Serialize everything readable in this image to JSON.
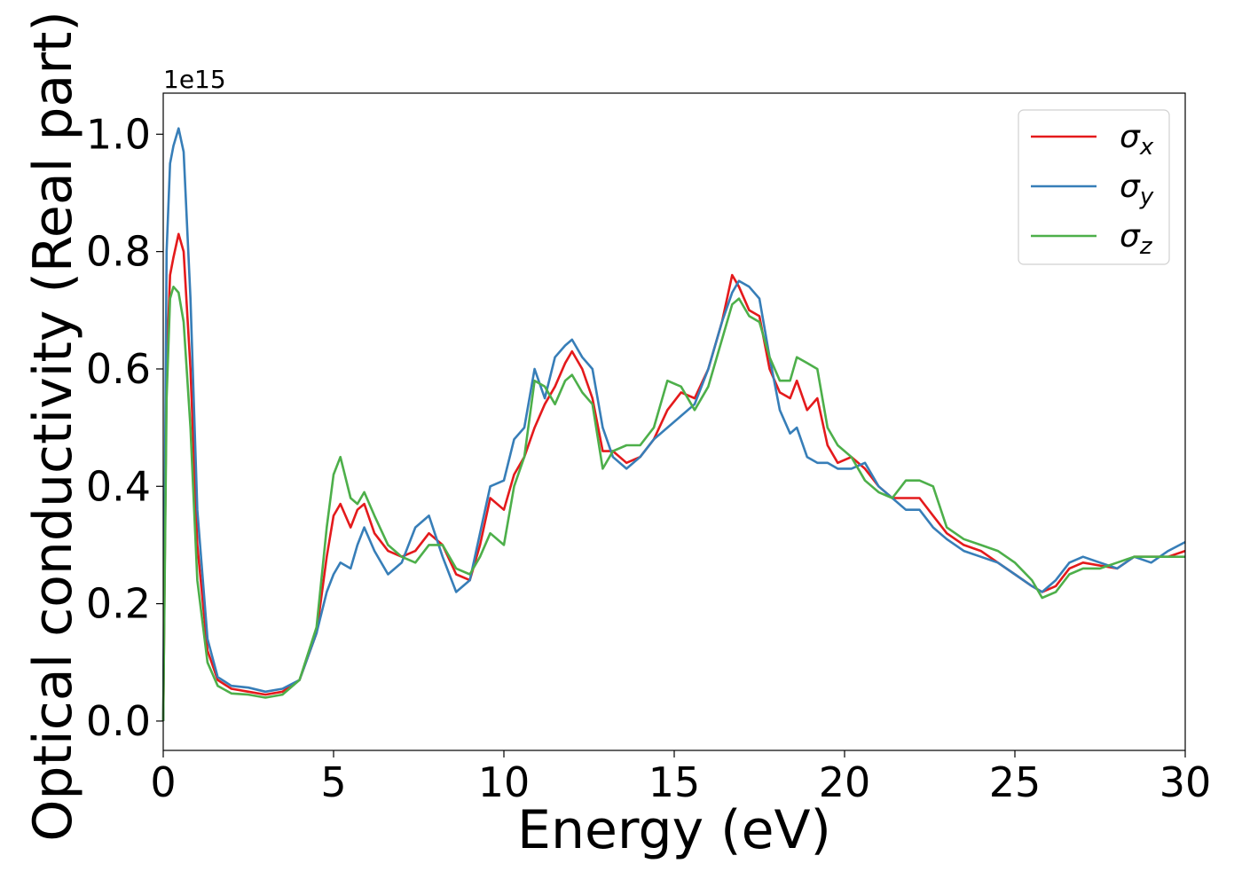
{
  "chart_data": {
    "type": "line",
    "title": "",
    "xlabel": "Energy (eV)",
    "ylabel": "Optical conductivity (Real part)",
    "y_offset_text": "1e15",
    "y_multiplier": 1000000000000000.0,
    "xlim": [
      0,
      30
    ],
    "ylim": [
      -0.05,
      1.07
    ],
    "xticks": [
      0,
      5,
      10,
      15,
      20,
      25,
      30
    ],
    "xtick_labels": [
      "0",
      "5",
      "10",
      "15",
      "20",
      "25",
      "30"
    ],
    "yticks": [
      0.0,
      0.2,
      0.4,
      0.6,
      0.8,
      1.0
    ],
    "ytick_labels": [
      "0.0",
      "0.2",
      "0.4",
      "0.6",
      "0.8",
      "1.0"
    ],
    "grid": false,
    "legend_position": "top-right",
    "series": [
      {
        "name": "σx",
        "symbol": "σ",
        "subscript": "x",
        "color": "#e41a1c",
        "x": [
          0,
          0.1,
          0.2,
          0.3,
          0.45,
          0.6,
          0.8,
          1.0,
          1.3,
          1.6,
          2.0,
          2.5,
          3.0,
          3.5,
          4.0,
          4.5,
          4.8,
          5.0,
          5.2,
          5.5,
          5.7,
          5.9,
          6.2,
          6.6,
          7.0,
          7.4,
          7.8,
          8.2,
          8.6,
          9.0,
          9.3,
          9.6,
          10.0,
          10.3,
          10.6,
          10.9,
          11.2,
          11.5,
          11.8,
          12.0,
          12.3,
          12.6,
          12.9,
          13.2,
          13.6,
          14.0,
          14.4,
          14.8,
          15.2,
          15.6,
          16.0,
          16.4,
          16.7,
          16.9,
          17.2,
          17.5,
          17.8,
          18.1,
          18.4,
          18.6,
          18.9,
          19.2,
          19.5,
          19.8,
          20.2,
          20.6,
          21.0,
          21.4,
          21.8,
          22.2,
          22.6,
          23.0,
          23.5,
          24.0,
          24.5,
          25.0,
          25.5,
          25.8,
          26.2,
          26.6,
          27.0,
          27.5,
          28.0,
          28.5,
          29.0,
          29.5,
          30.0
        ],
        "y": [
          0.0,
          0.6,
          0.76,
          0.79,
          0.83,
          0.8,
          0.6,
          0.3,
          0.12,
          0.07,
          0.055,
          0.05,
          0.045,
          0.05,
          0.07,
          0.15,
          0.28,
          0.35,
          0.37,
          0.33,
          0.36,
          0.37,
          0.32,
          0.29,
          0.28,
          0.29,
          0.32,
          0.3,
          0.25,
          0.24,
          0.3,
          0.38,
          0.36,
          0.42,
          0.45,
          0.5,
          0.54,
          0.57,
          0.61,
          0.63,
          0.6,
          0.55,
          0.46,
          0.46,
          0.44,
          0.45,
          0.48,
          0.53,
          0.56,
          0.55,
          0.6,
          0.68,
          0.76,
          0.74,
          0.7,
          0.69,
          0.6,
          0.56,
          0.55,
          0.58,
          0.53,
          0.55,
          0.47,
          0.44,
          0.45,
          0.43,
          0.4,
          0.38,
          0.38,
          0.38,
          0.35,
          0.32,
          0.3,
          0.29,
          0.27,
          0.25,
          0.23,
          0.22,
          0.23,
          0.26,
          0.27,
          0.265,
          0.26,
          0.28,
          0.28,
          0.28,
          0.29
        ]
      },
      {
        "name": "σy",
        "symbol": "σ",
        "subscript": "y",
        "color": "#377eb8",
        "x": [
          0,
          0.1,
          0.2,
          0.3,
          0.45,
          0.6,
          0.8,
          1.0,
          1.3,
          1.6,
          2.0,
          2.5,
          3.0,
          3.5,
          4.0,
          4.5,
          4.8,
          5.0,
          5.2,
          5.5,
          5.7,
          5.9,
          6.2,
          6.6,
          7.0,
          7.4,
          7.8,
          8.2,
          8.6,
          9.0,
          9.3,
          9.6,
          10.0,
          10.3,
          10.6,
          10.9,
          11.2,
          11.5,
          11.8,
          12.0,
          12.3,
          12.6,
          12.9,
          13.2,
          13.6,
          14.0,
          14.4,
          14.8,
          15.2,
          15.6,
          16.0,
          16.4,
          16.7,
          16.9,
          17.2,
          17.5,
          17.8,
          18.1,
          18.4,
          18.6,
          18.9,
          19.2,
          19.5,
          19.8,
          20.2,
          20.6,
          21.0,
          21.4,
          21.8,
          22.2,
          22.6,
          23.0,
          23.5,
          24.0,
          24.5,
          25.0,
          25.5,
          25.8,
          26.2,
          26.6,
          27.0,
          27.5,
          28.0,
          28.5,
          29.0,
          29.5,
          30.0
        ],
        "y": [
          0.0,
          0.8,
          0.95,
          0.98,
          1.01,
          0.97,
          0.72,
          0.36,
          0.14,
          0.075,
          0.06,
          0.057,
          0.05,
          0.055,
          0.07,
          0.15,
          0.22,
          0.25,
          0.27,
          0.26,
          0.3,
          0.33,
          0.29,
          0.25,
          0.27,
          0.33,
          0.35,
          0.28,
          0.22,
          0.24,
          0.32,
          0.4,
          0.41,
          0.48,
          0.5,
          0.6,
          0.55,
          0.62,
          0.64,
          0.65,
          0.62,
          0.6,
          0.5,
          0.45,
          0.43,
          0.45,
          0.48,
          0.5,
          0.52,
          0.54,
          0.6,
          0.68,
          0.73,
          0.75,
          0.74,
          0.72,
          0.62,
          0.53,
          0.49,
          0.5,
          0.45,
          0.44,
          0.44,
          0.43,
          0.43,
          0.44,
          0.4,
          0.38,
          0.36,
          0.36,
          0.33,
          0.31,
          0.29,
          0.28,
          0.27,
          0.25,
          0.23,
          0.22,
          0.24,
          0.27,
          0.28,
          0.27,
          0.26,
          0.28,
          0.27,
          0.29,
          0.305
        ]
      },
      {
        "name": "σz",
        "symbol": "σ",
        "subscript": "z",
        "color": "#4daf4a",
        "x": [
          0,
          0.1,
          0.2,
          0.3,
          0.45,
          0.6,
          0.8,
          1.0,
          1.3,
          1.6,
          2.0,
          2.5,
          3.0,
          3.5,
          4.0,
          4.5,
          4.8,
          5.0,
          5.2,
          5.5,
          5.7,
          5.9,
          6.2,
          6.6,
          7.0,
          7.4,
          7.8,
          8.2,
          8.6,
          9.0,
          9.3,
          9.6,
          10.0,
          10.3,
          10.6,
          10.9,
          11.2,
          11.5,
          11.8,
          12.0,
          12.3,
          12.6,
          12.9,
          13.2,
          13.6,
          14.0,
          14.4,
          14.8,
          15.2,
          15.6,
          16.0,
          16.4,
          16.7,
          16.9,
          17.2,
          17.5,
          17.8,
          18.1,
          18.4,
          18.6,
          18.9,
          19.2,
          19.5,
          19.8,
          20.2,
          20.6,
          21.0,
          21.4,
          21.8,
          22.2,
          22.6,
          23.0,
          23.5,
          24.0,
          24.5,
          25.0,
          25.5,
          25.8,
          26.2,
          26.6,
          27.0,
          27.5,
          28.0,
          28.5,
          29.0,
          29.5,
          30.0
        ],
        "y": [
          0.0,
          0.55,
          0.72,
          0.74,
          0.73,
          0.68,
          0.5,
          0.24,
          0.1,
          0.06,
          0.047,
          0.045,
          0.04,
          0.045,
          0.07,
          0.16,
          0.33,
          0.42,
          0.45,
          0.38,
          0.37,
          0.39,
          0.35,
          0.3,
          0.28,
          0.27,
          0.3,
          0.3,
          0.26,
          0.25,
          0.28,
          0.32,
          0.3,
          0.4,
          0.45,
          0.58,
          0.57,
          0.54,
          0.58,
          0.59,
          0.56,
          0.54,
          0.43,
          0.46,
          0.47,
          0.47,
          0.5,
          0.58,
          0.57,
          0.53,
          0.57,
          0.65,
          0.71,
          0.72,
          0.69,
          0.68,
          0.62,
          0.58,
          0.58,
          0.62,
          0.61,
          0.6,
          0.5,
          0.47,
          0.45,
          0.41,
          0.39,
          0.38,
          0.41,
          0.41,
          0.4,
          0.33,
          0.31,
          0.3,
          0.29,
          0.27,
          0.24,
          0.21,
          0.22,
          0.25,
          0.26,
          0.26,
          0.27,
          0.28,
          0.28,
          0.28,
          0.28
        ]
      }
    ]
  }
}
